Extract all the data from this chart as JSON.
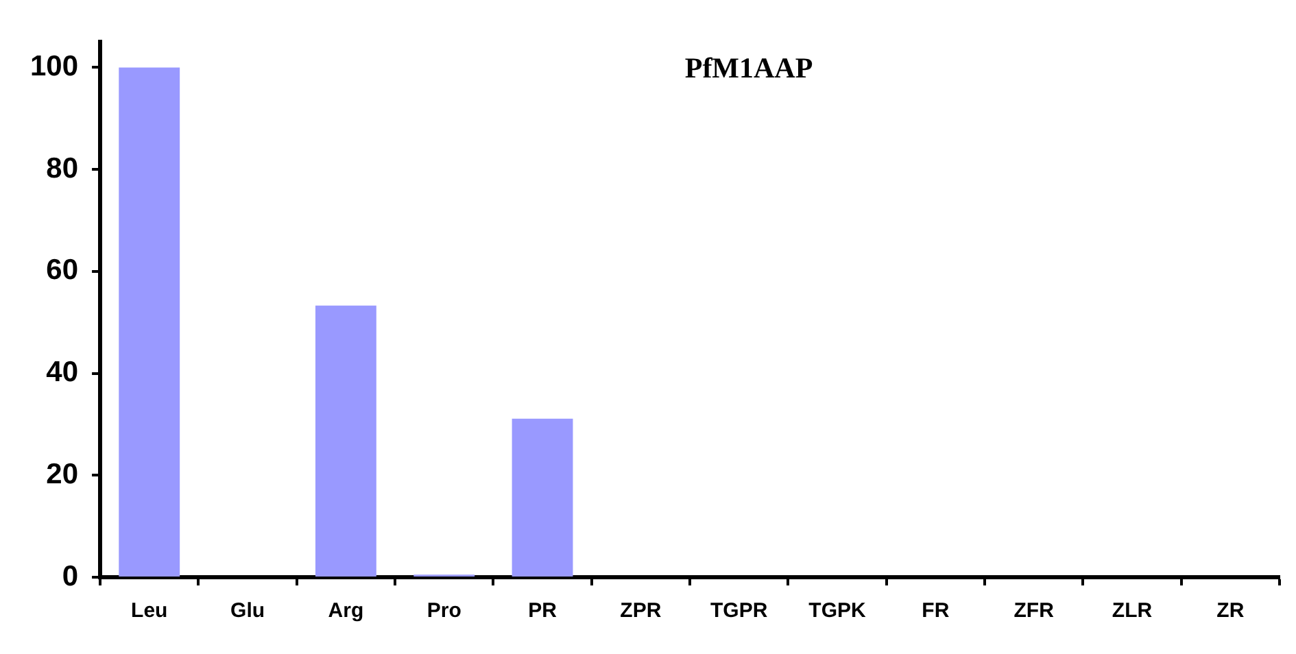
{
  "chart_data": {
    "type": "bar",
    "title": "PfM1AAP",
    "categories": [
      "Leu",
      "Glu",
      "Arg",
      "Pro",
      "PR",
      "ZPR",
      "TGPR",
      "TGPK",
      "FR",
      "ZFR",
      "ZLR",
      "ZR"
    ],
    "values": [
      100,
      0,
      53.3,
      0.5,
      31.1,
      0,
      0,
      0,
      0,
      0,
      0,
      0
    ],
    "color": "#9999ff",
    "ylim": [
      0,
      105
    ],
    "yticks": [
      0,
      20,
      40,
      60,
      80,
      100
    ],
    "grid": false,
    "legend": false
  }
}
